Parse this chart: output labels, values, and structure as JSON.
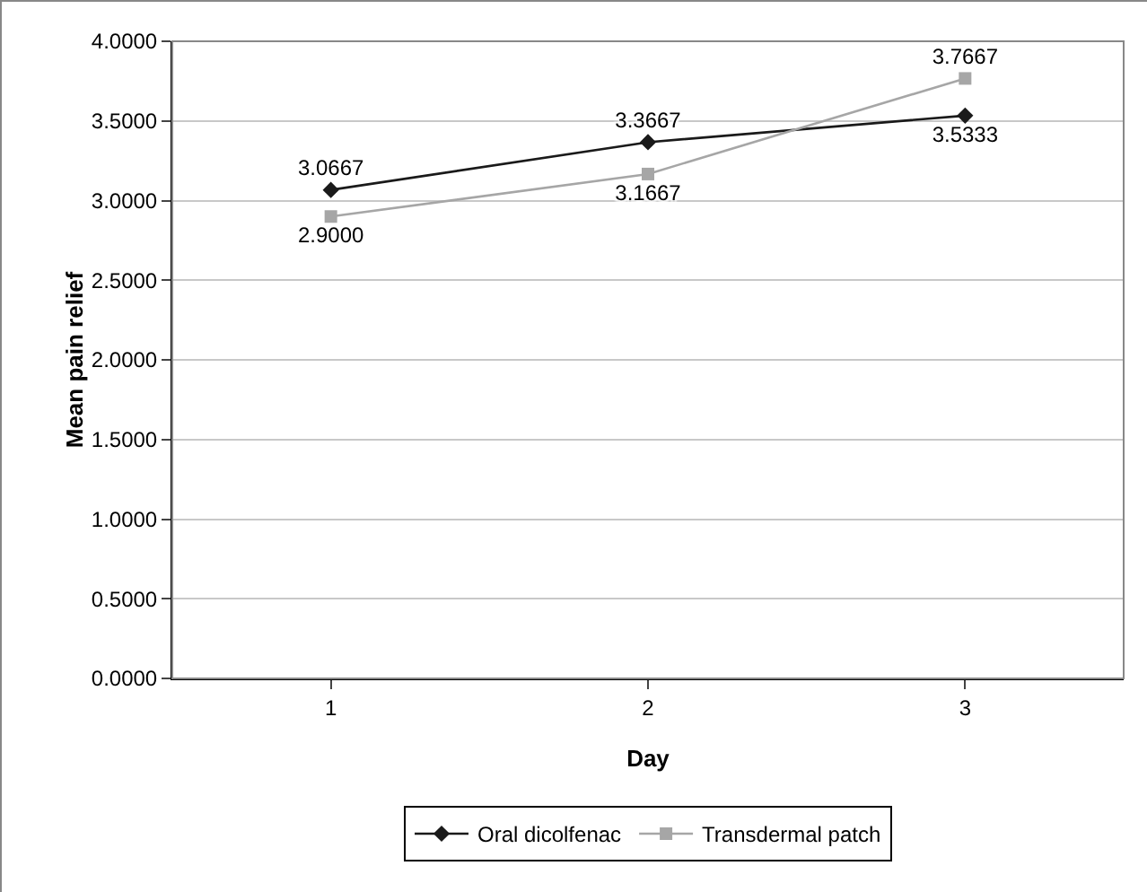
{
  "chart_data": {
    "type": "line",
    "xlabel": "Day",
    "ylabel": "Mean pain relief",
    "categories": [
      "1",
      "2",
      "3"
    ],
    "series": [
      {
        "name": "Oral dicolfenac",
        "color": "#1a1a1a",
        "marker": "diamond",
        "values": [
          3.0667,
          3.3667,
          3.5333
        ],
        "value_labels": [
          "3.0667",
          "3.3667",
          "3.5333"
        ]
      },
      {
        "name": "Transdermal patch",
        "color": "#a6a6a6",
        "marker": "square",
        "values": [
          2.9,
          3.1667,
          3.7667
        ],
        "value_labels": [
          "2.9000",
          "3.1667",
          "3.7667"
        ]
      }
    ],
    "ylim": [
      0,
      4
    ],
    "yticks": [
      {
        "value": 0,
        "label": "0.0000"
      },
      {
        "value": 0.5,
        "label": "0.5000"
      },
      {
        "value": 1,
        "label": "1.0000"
      },
      {
        "value": 1.5,
        "label": "1.5000"
      },
      {
        "value": 2,
        "label": "2.0000"
      },
      {
        "value": 2.5,
        "label": "2.5000"
      },
      {
        "value": 3,
        "label": "3.0000"
      },
      {
        "value": 3.5,
        "label": "3.5000"
      },
      {
        "value": 4,
        "label": "4.0000"
      }
    ],
    "grid": "y",
    "legend": "bottom",
    "line_style": "solid"
  }
}
